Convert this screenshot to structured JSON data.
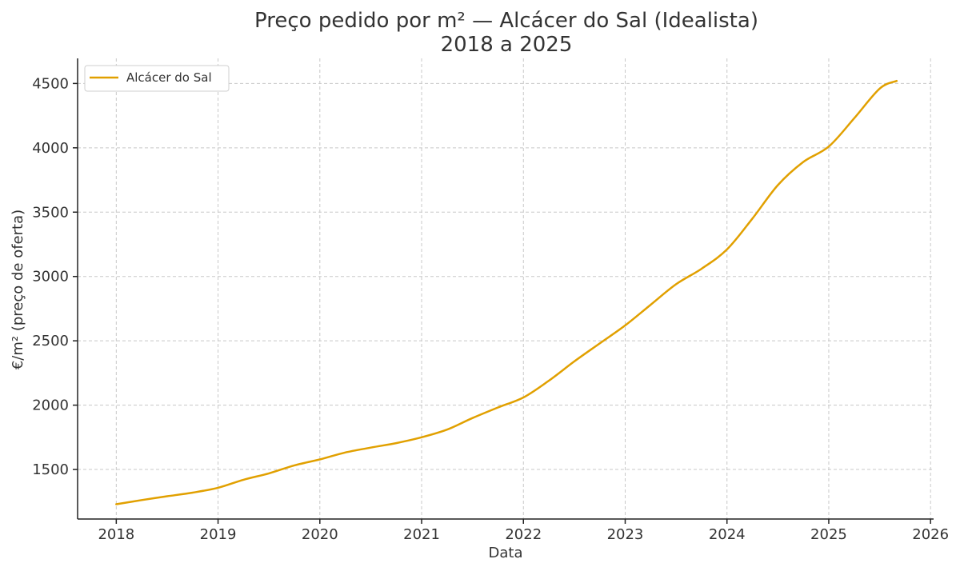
{
  "chart_data": {
    "type": "line",
    "title": "Preço pedido por m² — Alcácer do Sal (Idealista)",
    "subtitle": "2018 a 2025",
    "xlabel": "Data",
    "ylabel": "€/m² (preço de oferta)",
    "xlim": [
      2017.62,
      2026.03
    ],
    "ylim": [
      1115,
      4695
    ],
    "x_ticks": [
      2018,
      2019,
      2020,
      2021,
      2022,
      2023,
      2024,
      2025,
      2026
    ],
    "x_tick_labels": [
      "2018",
      "2019",
      "2020",
      "2021",
      "2022",
      "2023",
      "2024",
      "2025",
      "2026"
    ],
    "y_ticks": [
      1500,
      2000,
      2500,
      3000,
      3500,
      4000,
      4500
    ],
    "y_tick_labels": [
      "1500",
      "2000",
      "2500",
      "3000",
      "3500",
      "4000",
      "4500"
    ],
    "grid": true,
    "legend_position": "top-left",
    "series": [
      {
        "name": "Alcácer do Sal",
        "color": "#e1a000",
        "points": [
          [
            "2018-01",
            1230
          ],
          [
            "2018-04",
            1262
          ],
          [
            "2018-07",
            1292
          ],
          [
            "2018-10",
            1320
          ],
          [
            "2019-01",
            1358
          ],
          [
            "2019-04",
            1420
          ],
          [
            "2019-07",
            1470
          ],
          [
            "2019-10",
            1532
          ],
          [
            "2020-01",
            1578
          ],
          [
            "2020-04",
            1632
          ],
          [
            "2020-07",
            1670
          ],
          [
            "2020-10",
            1705
          ],
          [
            "2021-01",
            1750
          ],
          [
            "2021-04",
            1810
          ],
          [
            "2021-07",
            1900
          ],
          [
            "2021-10",
            1982
          ],
          [
            "2022-01",
            2060
          ],
          [
            "2022-04",
            2190
          ],
          [
            "2022-07",
            2340
          ],
          [
            "2022-10",
            2480
          ],
          [
            "2023-01",
            2620
          ],
          [
            "2023-04",
            2780
          ],
          [
            "2023-07",
            2940
          ],
          [
            "2023-10",
            3060
          ],
          [
            "2024-01",
            3210
          ],
          [
            "2024-04",
            3450
          ],
          [
            "2024-07",
            3710
          ],
          [
            "2024-10",
            3890
          ],
          [
            "2025-01",
            4010
          ],
          [
            "2025-04",
            4230
          ],
          [
            "2025-07",
            4460
          ],
          [
            "2025-09",
            4520
          ]
        ]
      }
    ]
  }
}
